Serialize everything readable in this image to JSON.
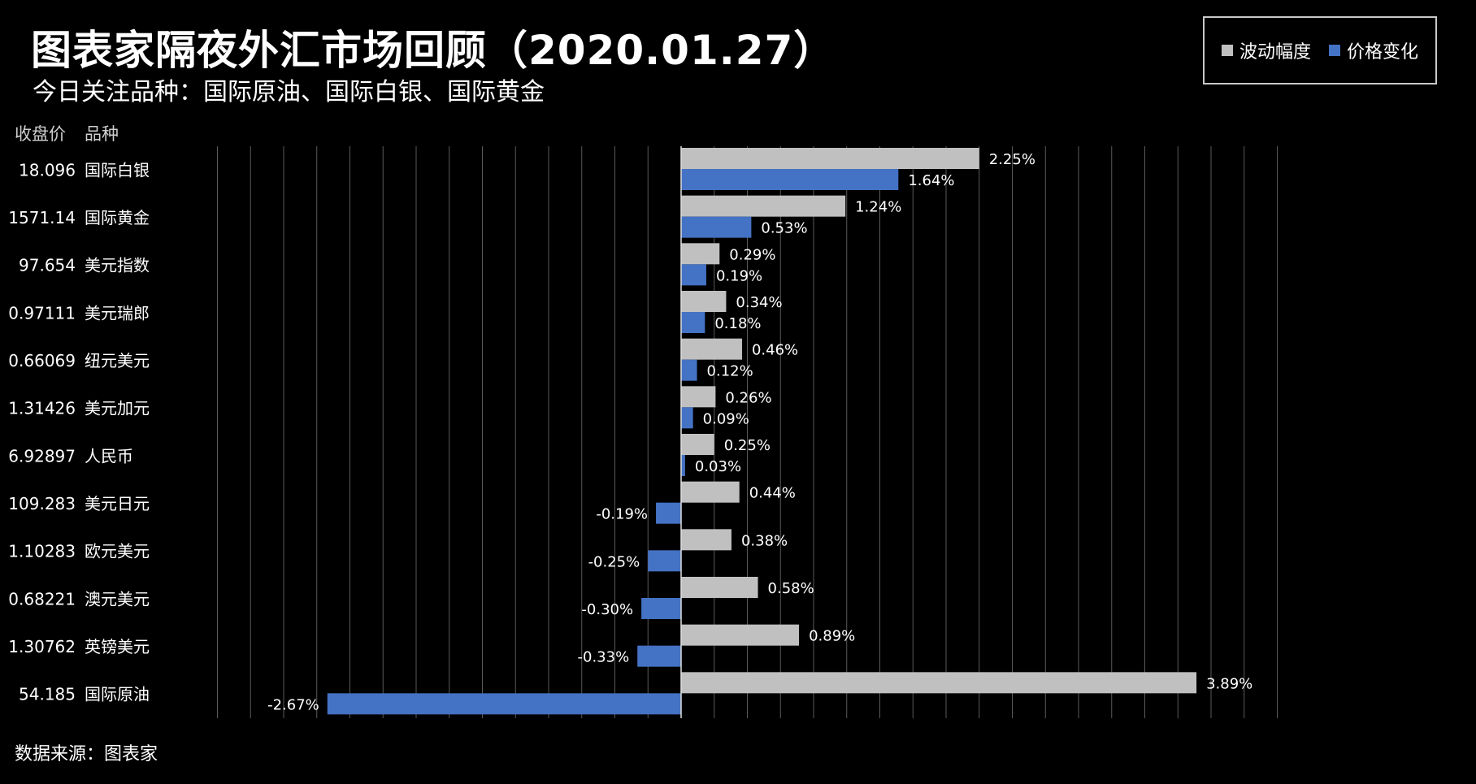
{
  "title": "图表家隔夜外汇市场回顾（2020.01.27）",
  "subtitle": "今日关注品种：国际原油、国际白银、国际黄金",
  "source": "数据来源：图表家",
  "legend": [
    {
      "label": "波动幅度",
      "color": "#c0c0c0"
    },
    {
      "label": "价格变化",
      "color": "#4472c4"
    }
  ],
  "chart_data": {
    "type": "bar",
    "orientation": "horizontal",
    "column_headers": {
      "price": "收盘价",
      "name": "品种"
    },
    "categories": [
      "国际白银",
      "国际黄金",
      "美元指数",
      "美元瑞郎",
      "纽元美元",
      "美元加元",
      "人民币",
      "美元日元",
      "欧元美元",
      "澳元美元",
      "英镑美元",
      "国际原油"
    ],
    "closing_prices": [
      "18.096",
      "1571.14",
      "97.654",
      "0.97111",
      "0.66069",
      "1.31426",
      "6.92897",
      "109.283",
      "1.10283",
      "0.68221",
      "1.30762",
      "54.185"
    ],
    "series": [
      {
        "name": "波动幅度",
        "color": "#c0c0c0",
        "values": [
          2.25,
          1.24,
          0.29,
          0.34,
          0.46,
          0.26,
          0.25,
          0.44,
          0.38,
          0.58,
          0.89,
          3.89
        ]
      },
      {
        "name": "价格变化",
        "color": "#4472c4",
        "values": [
          1.64,
          0.53,
          0.19,
          0.18,
          0.12,
          0.09,
          0.03,
          -0.19,
          -0.25,
          -0.3,
          -0.33,
          -2.67
        ]
      }
    ],
    "value_labels": {
      "波动幅度": [
        "2.25%",
        "1.24%",
        "0.29%",
        "0.34%",
        "0.46%",
        "0.26%",
        "0.25%",
        "0.44%",
        "0.38%",
        "0.58%",
        "0.89%",
        "3.89%"
      ],
      "价格变化": [
        "1.64%",
        "0.53%",
        "0.19%",
        "0.18%",
        "0.12%",
        "0.09%",
        "0.03%",
        "-0.19%",
        "-0.25%",
        "-0.30%",
        "-0.33%",
        "-2.67%"
      ]
    },
    "xlim": [
      -3.0,
      4.4
    ],
    "grid": true,
    "legend_position": "top-right",
    "unit": "%"
  }
}
